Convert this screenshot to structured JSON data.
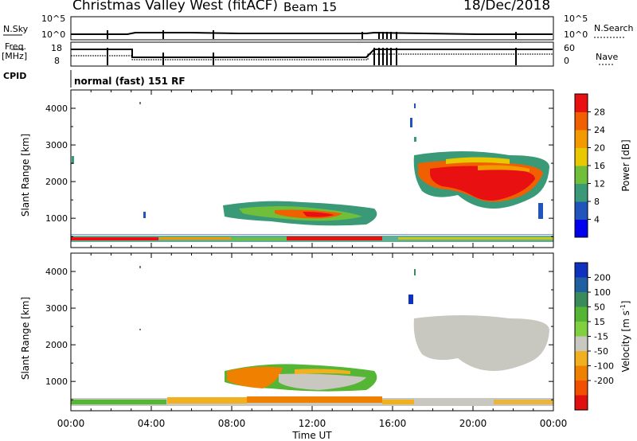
{
  "header": {
    "title": "Christmas Valley West (fitACF)",
    "beam": "Beam 15",
    "date": "18/Dec/2018"
  },
  "noise_panel": {
    "left_label": "N.Sky",
    "left_ticks": [
      "10^5",
      "10^0"
    ],
    "right_label": "N.Search",
    "right_ticks": [
      "10^5",
      "10^0"
    ]
  },
  "freq_panel": {
    "left_label": "Freq.",
    "left_unit": "[MHz]",
    "left_ticks": [
      "18",
      "8"
    ],
    "right_label": "Nave",
    "right_ticks": [
      "60",
      "0"
    ]
  },
  "cpid": {
    "label": "CPID",
    "value": "normal (fast) 151 RF"
  },
  "chart_data": [
    {
      "type": "heatmap",
      "parameter": "Power",
      "ylabel": "Slant Range [km]",
      "colorbar_label": "Power [dB]",
      "colorbar_ticks": [
        "4",
        "8",
        "12",
        "16",
        "20",
        "24",
        "28"
      ],
      "colorbar_colors": [
        "#0000ee",
        "#2255bb",
        "#3a9a78",
        "#6fbf3a",
        "#e8c800",
        "#f39a00",
        "#f06000",
        "#e81010"
      ],
      "y_ticks": [
        "1000",
        "2000",
        "3000",
        "4000"
      ],
      "ylim": [
        200,
        4500
      ],
      "x_ticks": [
        "00:00",
        "04:00",
        "08:00",
        "12:00",
        "16:00",
        "20:00",
        "00:00"
      ],
      "xlim_hours": [
        0,
        24
      ]
    },
    {
      "type": "heatmap",
      "parameter": "Velocity",
      "ylabel": "Slant Range [km]",
      "colorbar_label": "Velocity [m s",
      "colorbar_label_sup": "-1",
      "colorbar_label_end": "]",
      "colorbar_ticks": [
        "200",
        "100",
        "50",
        "15",
        "-15",
        "-50",
        "-100",
        "-200"
      ],
      "colorbar_colors": [
        "#1030c0",
        "#2060a0",
        "#3a8a5a",
        "#55b535",
        "#80d040",
        "#c8c8c0",
        "#f0b020",
        "#f08000",
        "#f05000",
        "#e01010"
      ],
      "y_ticks": [
        "1000",
        "2000",
        "3000",
        "4000"
      ],
      "ylim": [
        200,
        4500
      ],
      "x_ticks": [
        "00:00",
        "04:00",
        "08:00",
        "12:00",
        "16:00",
        "20:00",
        "00:00"
      ],
      "xlim_hours": [
        0,
        24
      ],
      "xlabel": "Time UT"
    }
  ]
}
